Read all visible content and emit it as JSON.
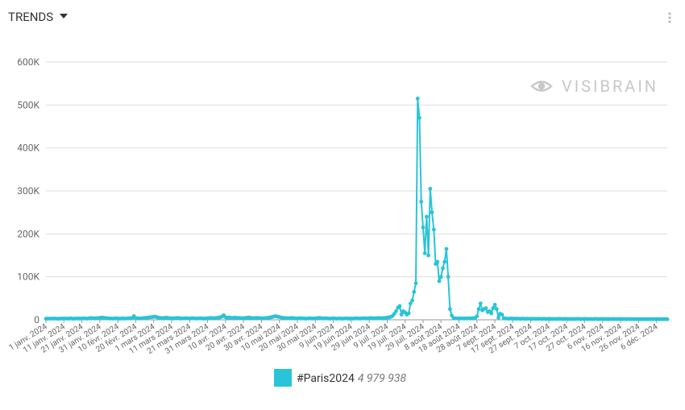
{
  "header": {
    "title": "TRENDS"
  },
  "watermark": "VISIBRAIN",
  "chart_data": {
    "type": "line",
    "ylim": [
      0,
      600000
    ],
    "yticks": [
      0,
      {
        "value": 100000,
        "label": "100K"
      },
      {
        "value": 200000,
        "label": "200K"
      },
      {
        "value": 300000,
        "label": "300K"
      },
      {
        "value": 400000,
        "label": "400K"
      },
      {
        "value": 500000,
        "label": "500K"
      },
      {
        "value": 600000,
        "label": "600K"
      }
    ],
    "grid": true,
    "categories": [
      "1 janv. 2024",
      null,
      null,
      null,
      null,
      null,
      null,
      null,
      null,
      null,
      "11 janv. 2024",
      null,
      null,
      null,
      null,
      null,
      null,
      null,
      null,
      null,
      "21 janv. 2024",
      null,
      null,
      null,
      null,
      null,
      null,
      null,
      null,
      null,
      "31 janv. 2024",
      null,
      null,
      null,
      null,
      null,
      null,
      null,
      null,
      null,
      "10 févr. 2024",
      null,
      null,
      null,
      null,
      null,
      null,
      null,
      null,
      null,
      "20 févr. 2024",
      null,
      null,
      null,
      null,
      null,
      null,
      null,
      null,
      null,
      "1 mars 2024",
      null,
      null,
      null,
      null,
      null,
      null,
      null,
      null,
      null,
      "11 mars 2024",
      null,
      null,
      null,
      null,
      null,
      null,
      null,
      null,
      null,
      "21 mars 2024",
      null,
      null,
      null,
      null,
      null,
      null,
      null,
      null,
      null,
      "31 mars 2024",
      null,
      null,
      null,
      null,
      null,
      null,
      null,
      null,
      null,
      "10 avr. 2024",
      null,
      null,
      null,
      null,
      null,
      null,
      null,
      null,
      null,
      "20 avr. 2024",
      null,
      null,
      null,
      null,
      null,
      null,
      null,
      null,
      null,
      "30 avr. 2024",
      null,
      null,
      null,
      null,
      null,
      null,
      null,
      null,
      null,
      "10 mai 2024",
      null,
      null,
      null,
      null,
      null,
      null,
      null,
      null,
      null,
      "20 mai 2024",
      null,
      null,
      null,
      null,
      null,
      null,
      null,
      null,
      null,
      "30 mai 2024",
      null,
      null,
      null,
      null,
      null,
      null,
      null,
      null,
      null,
      "9 juin 2024",
      null,
      null,
      null,
      null,
      null,
      null,
      null,
      null,
      null,
      "19 juin 2024",
      null,
      null,
      null,
      null,
      null,
      null,
      null,
      null,
      null,
      "29 juin 2024",
      null,
      null,
      null,
      null,
      null,
      null,
      null,
      null,
      null,
      "9 juil. 2024",
      null,
      null,
      null,
      null,
      null,
      null,
      null,
      null,
      null,
      "19 juil. 2024",
      null,
      null,
      null,
      null,
      null,
      null,
      null,
      null,
      null,
      "29 juil. 2024",
      null,
      null,
      null,
      null,
      null,
      null,
      null,
      null,
      null,
      "8 août 2024",
      null,
      null,
      null,
      null,
      null,
      null,
      null,
      null,
      null,
      "18 août 2024",
      null,
      null,
      null,
      null,
      null,
      null,
      null,
      null,
      null,
      "28 août 2024",
      null,
      null,
      null,
      null,
      null,
      null,
      null,
      null,
      null,
      "7 sept. 2024",
      null,
      null,
      null,
      null,
      null,
      null,
      null,
      null,
      null,
      "17 sept. 2024",
      null,
      null,
      null,
      null,
      null,
      null,
      null,
      null,
      null,
      "27 sept. 2024",
      null,
      null,
      null,
      null,
      null,
      null,
      null,
      null,
      null,
      "7 oct. 2024",
      null,
      null,
      null,
      null,
      null,
      null,
      null,
      null,
      null,
      "17 oct. 2024",
      null,
      null,
      null,
      null,
      null,
      null,
      null,
      null,
      null,
      "27 oct. 2024",
      null,
      null,
      null,
      null,
      null,
      null,
      null,
      null,
      null,
      "6 nov. 2024",
      null,
      null,
      null,
      null,
      null,
      null,
      null,
      null,
      null,
      "16 nov. 2024",
      null,
      null,
      null,
      null,
      null,
      null,
      null,
      null,
      null,
      "26 nov. 2024",
      null,
      null,
      null,
      null,
      null,
      null,
      null,
      null,
      null,
      "6 déc. 2024",
      null,
      null,
      null,
      null,
      null,
      null
    ],
    "series": [
      {
        "name": "#Paris2024",
        "color": "#29c4d8",
        "total": {
          "value": 4979938,
          "label": "4 979 938"
        },
        "values": [
          2500,
          2800,
          2600,
          3000,
          2700,
          2900,
          2600,
          2500,
          2800,
          3000,
          2800,
          3100,
          2700,
          2900,
          3200,
          2600,
          2800,
          3000,
          2700,
          2900,
          3000,
          3300,
          3100,
          2800,
          3500,
          4200,
          3800,
          3200,
          3600,
          3900,
          4500,
          5200,
          4800,
          4100,
          3600,
          3300,
          3000,
          2800,
          3100,
          3400,
          2900,
          2700,
          3000,
          3200,
          2800,
          3100,
          3500,
          4000,
          3800,
          8500,
          4200,
          3600,
          3100,
          3400,
          3800,
          4100,
          4600,
          5200,
          5800,
          6200,
          6800,
          7200,
          5600,
          4800,
          4100,
          3600,
          4300,
          5000,
          4400,
          3800,
          3500,
          3200,
          3600,
          4200,
          3900,
          3400,
          3100,
          3500,
          3800,
          3300,
          3000,
          3400,
          3700,
          3200,
          2900,
          3300,
          3600,
          3100,
          2800,
          3200,
          3500,
          3900,
          4400,
          4000,
          3600,
          4500,
          5000,
          5600,
          7500,
          10500,
          6000,
          4800,
          5400,
          4600,
          4200,
          5100,
          4700,
          4300,
          4000,
          3600,
          3800,
          4200,
          4900,
          5300,
          4600,
          4000,
          3700,
          4100,
          4500,
          3900,
          3600,
          3400,
          3800,
          4200,
          5000,
          5500,
          6200,
          7800,
          8500,
          7200,
          6400,
          5200,
          4600,
          4100,
          3800,
          3500,
          3900,
          4300,
          3600,
          3300,
          3100,
          3400,
          3700,
          3300,
          3000,
          2800,
          3200,
          3500,
          3100,
          2900,
          3300,
          3800,
          4400,
          3900,
          3500,
          3200,
          3600,
          3000,
          2800,
          3100,
          3400,
          3000,
          2700,
          3100,
          2900,
          2600,
          3000,
          3300,
          2900,
          2700,
          3000,
          2800,
          3200,
          3500,
          3100,
          2900,
          3300,
          3700,
          3400,
          3200,
          3600,
          4000,
          3500,
          3300,
          3800,
          4200,
          3900,
          3600,
          4100,
          4500,
          5000,
          5600,
          6800,
          9000,
          14000,
          20000,
          28000,
          32000,
          12000,
          20000,
          17000,
          12000,
          15000,
          38000,
          45000,
          65000,
          85000,
          515000,
          470000,
          275000,
          215000,
          155000,
          240000,
          150000,
          305000,
          250000,
          210000,
          130000,
          135000,
          90000,
          100000,
          120000,
          135000,
          165000,
          100000,
          25000,
          10000,
          4000,
          3500,
          3200,
          3000,
          3300,
          3100,
          2900,
          3200,
          3500,
          3000,
          3300,
          3600,
          4500,
          8000,
          25000,
          38000,
          22000,
          25000,
          27000,
          18000,
          20000,
          15000,
          27000,
          35000,
          25000,
          5000,
          14000,
          12000,
          3500,
          3000,
          2800,
          2600,
          2900,
          2700,
          2500,
          2800,
          2600,
          2400,
          2700,
          2500,
          2300,
          2600,
          2400,
          2200,
          2500,
          2300,
          2100,
          2400,
          2200,
          2000,
          2300,
          2100,
          1900,
          2200,
          2000,
          1800,
          2100,
          1900,
          2000,
          2200,
          1900,
          1800,
          2000,
          2100,
          1900,
          1700,
          2000,
          1800,
          1900,
          2100,
          1800,
          1700,
          1900,
          2000,
          1800,
          1600,
          1900,
          1700,
          1800,
          2000,
          1700,
          1600,
          1800,
          1900,
          1700,
          1500,
          1800,
          1600,
          1700,
          1900,
          1600,
          1500,
          1700,
          1800,
          1600,
          1500,
          1700,
          1600,
          1500,
          1700,
          1600,
          1400,
          1600,
          1700,
          1500,
          1400,
          1600,
          1500,
          1400,
          1600,
          1500,
          1400,
          1600,
          1500,
          1400,
          1500,
          1600,
          1400,
          1500,
          1400
        ]
      }
    ]
  }
}
